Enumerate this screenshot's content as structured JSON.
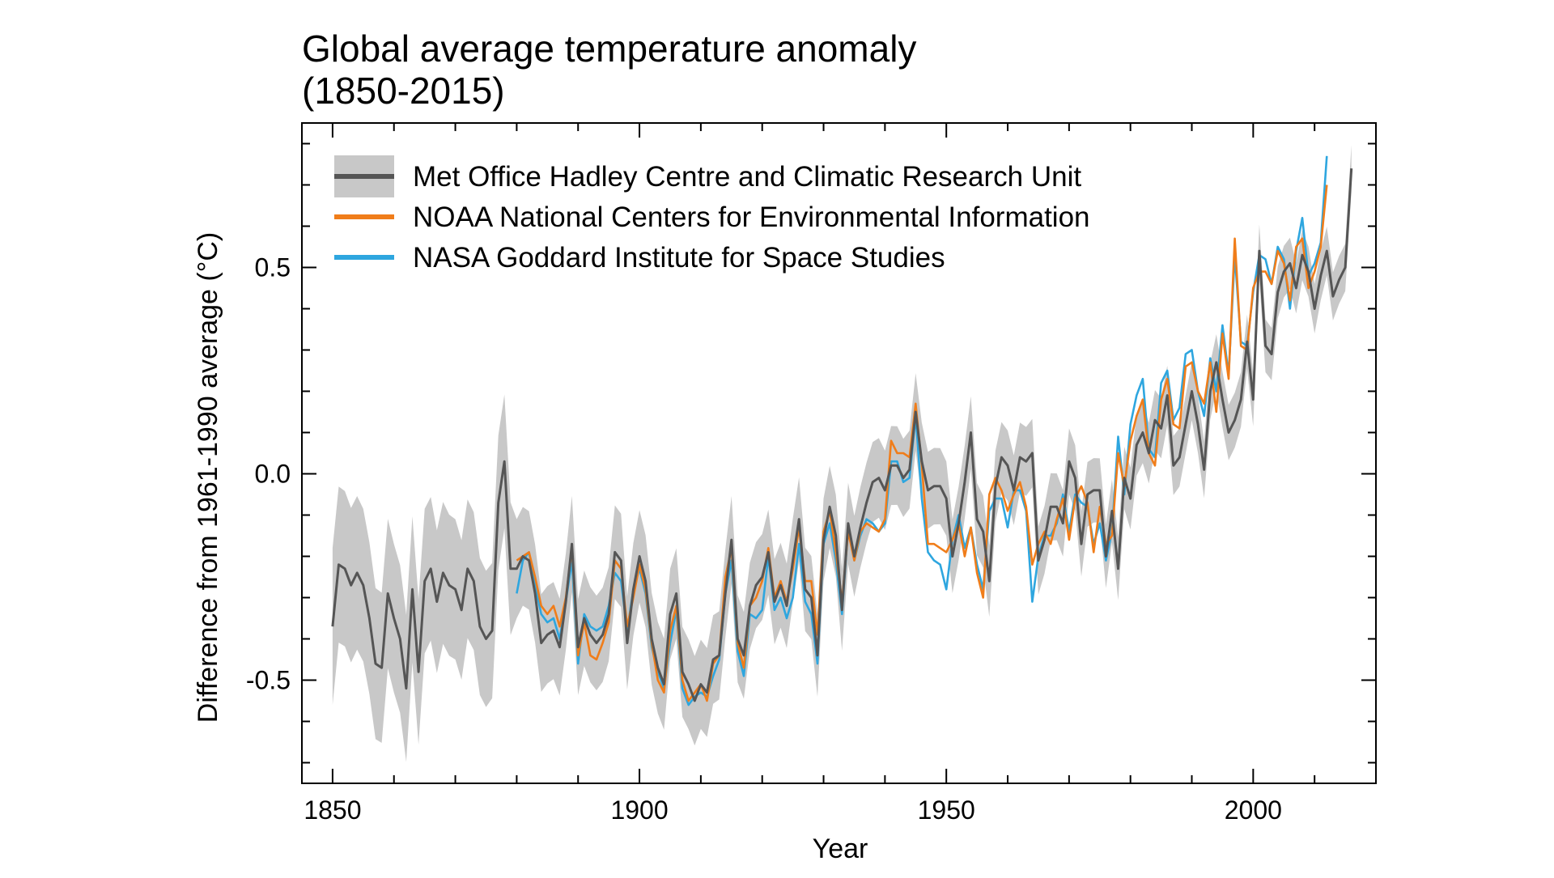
{
  "chart_data": {
    "type": "line",
    "title": "Global average temperature anomaly",
    "subtitle": "(1850-2015)",
    "xlabel": "Year",
    "ylabel": "Difference from 1961-1990 average (°C)",
    "xlim": [
      1845,
      2020
    ],
    "ylim": [
      -0.75,
      0.85
    ],
    "x_ticks": [
      1850,
      1900,
      1950,
      2000
    ],
    "y_ticks": [
      -0.5,
      0.0,
      0.5
    ],
    "y_tick_labels": [
      "-0.5",
      "0.0",
      "0.5"
    ],
    "grid": false,
    "legend_position": "top-left",
    "colors": {
      "hadcrut": "#555555",
      "uncertainty": "#c8c8c8",
      "noaa": "#f07d1a",
      "nasa": "#2ea6df"
    },
    "series": [
      {
        "name": "Met Office Hadley Centre and Climatic Research Unit",
        "color": "#555555",
        "band": true,
        "start_year": 1850,
        "values": [
          -0.37,
          -0.22,
          -0.23,
          -0.27,
          -0.24,
          -0.27,
          -0.35,
          -0.46,
          -0.47,
          -0.29,
          -0.35,
          -0.4,
          -0.52,
          -0.28,
          -0.48,
          -0.26,
          -0.23,
          -0.31,
          -0.24,
          -0.27,
          -0.28,
          -0.33,
          -0.23,
          -0.26,
          -0.37,
          -0.4,
          -0.38,
          -0.07,
          0.03,
          -0.23,
          -0.23,
          -0.2,
          -0.21,
          -0.29,
          -0.41,
          -0.39,
          -0.38,
          -0.42,
          -0.31,
          -0.17,
          -0.42,
          -0.35,
          -0.39,
          -0.41,
          -0.39,
          -0.34,
          -0.19,
          -0.21,
          -0.41,
          -0.28,
          -0.2,
          -0.26,
          -0.4,
          -0.47,
          -0.51,
          -0.34,
          -0.29,
          -0.48,
          -0.51,
          -0.55,
          -0.51,
          -0.53,
          -0.45,
          -0.44,
          -0.29,
          -0.16,
          -0.4,
          -0.44,
          -0.32,
          -0.27,
          -0.25,
          -0.19,
          -0.31,
          -0.27,
          -0.32,
          -0.21,
          -0.11,
          -0.28,
          -0.3,
          -0.44,
          -0.16,
          -0.08,
          -0.15,
          -0.33,
          -0.12,
          -0.2,
          -0.13,
          -0.07,
          -0.02,
          -0.01,
          -0.04,
          0.02,
          0.02,
          -0.01,
          0.01,
          0.15,
          0.03,
          -0.04,
          -0.03,
          -0.03,
          -0.06,
          -0.2,
          -0.12,
          -0.02,
          0.1,
          -0.11,
          -0.14,
          -0.26,
          -0.03,
          0.04,
          0.02,
          -0.04,
          0.04,
          0.03,
          0.05,
          -0.21,
          -0.16,
          -0.08,
          -0.08,
          -0.12,
          0.03,
          -0.01,
          -0.17,
          -0.05,
          -0.04,
          -0.04,
          -0.2,
          -0.09,
          -0.23,
          -0.01,
          -0.06,
          0.07,
          0.1,
          0.05,
          0.13,
          0.11,
          0.19,
          0.02,
          0.04,
          0.12,
          0.2,
          0.12,
          0.01,
          0.2,
          0.27,
          0.18,
          0.1,
          0.13,
          0.18,
          0.32,
          0.18,
          0.54,
          0.31,
          0.29,
          0.44,
          0.49,
          0.51,
          0.45,
          0.53,
          0.49,
          0.4,
          0.48,
          0.54,
          0.43,
          0.47,
          0.5,
          0.74
        ]
      },
      {
        "name": "NOAA National Centers for Environmental Information",
        "color": "#f07d1a",
        "start_year": 1880,
        "values": [
          -0.21,
          -0.2,
          -0.19,
          -0.25,
          -0.32,
          -0.34,
          -0.32,
          -0.37,
          -0.3,
          -0.18,
          -0.44,
          -0.36,
          -0.44,
          -0.45,
          -0.41,
          -0.36,
          -0.21,
          -0.23,
          -0.37,
          -0.3,
          -0.22,
          -0.28,
          -0.41,
          -0.5,
          -0.53,
          -0.38,
          -0.32,
          -0.5,
          -0.55,
          -0.53,
          -0.51,
          -0.55,
          -0.46,
          -0.44,
          -0.25,
          -0.18,
          -0.41,
          -0.47,
          -0.32,
          -0.3,
          -0.26,
          -0.18,
          -0.3,
          -0.26,
          -0.31,
          -0.23,
          -0.13,
          -0.26,
          -0.26,
          -0.39,
          -0.14,
          -0.09,
          -0.19,
          -0.31,
          -0.14,
          -0.21,
          -0.14,
          -0.12,
          -0.13,
          -0.14,
          -0.11,
          0.08,
          0.05,
          0.05,
          0.04,
          0.17,
          0.02,
          -0.17,
          -0.17,
          -0.18,
          -0.19,
          -0.16,
          -0.12,
          -0.2,
          -0.13,
          -0.24,
          -0.3,
          -0.05,
          -0.01,
          -0.04,
          -0.09,
          -0.05,
          -0.02,
          -0.08,
          -0.22,
          -0.17,
          -0.14,
          -0.17,
          -0.11,
          -0.06,
          -0.16,
          -0.06,
          -0.03,
          -0.07,
          -0.19,
          -0.08,
          -0.17,
          -0.15,
          0.05,
          -0.03,
          0.08,
          0.14,
          0.18,
          0.05,
          0.02,
          0.18,
          0.23,
          0.12,
          0.11,
          0.26,
          0.27,
          0.2,
          0.17,
          0.27,
          0.15,
          0.34,
          0.23,
          0.57,
          0.31,
          0.3,
          0.45,
          0.49,
          0.49,
          0.46,
          0.54,
          0.51,
          0.42,
          0.55,
          0.57,
          0.45,
          0.49,
          0.55,
          0.7
        ]
      },
      {
        "name": "NASA Goddard Institute for Space Studies",
        "color": "#2ea6df",
        "start_year": 1880,
        "values": [
          -0.29,
          -0.21,
          -0.19,
          -0.27,
          -0.34,
          -0.36,
          -0.35,
          -0.4,
          -0.31,
          -0.21,
          -0.46,
          -0.34,
          -0.37,
          -0.38,
          -0.37,
          -0.32,
          -0.24,
          -0.26,
          -0.38,
          -0.28,
          -0.23,
          -0.29,
          -0.42,
          -0.48,
          -0.52,
          -0.41,
          -0.33,
          -0.52,
          -0.56,
          -0.54,
          -0.53,
          -0.54,
          -0.49,
          -0.45,
          -0.29,
          -0.21,
          -0.43,
          -0.49,
          -0.34,
          -0.35,
          -0.33,
          -0.2,
          -0.33,
          -0.3,
          -0.35,
          -0.3,
          -0.17,
          -0.31,
          -0.34,
          -0.46,
          -0.17,
          -0.12,
          -0.21,
          -0.34,
          -0.13,
          -0.21,
          -0.15,
          -0.11,
          -0.12,
          -0.14,
          -0.12,
          0.03,
          0.03,
          -0.02,
          -0.01,
          0.14,
          -0.06,
          -0.19,
          -0.21,
          -0.22,
          -0.28,
          -0.16,
          -0.1,
          -0.18,
          -0.13,
          -0.22,
          -0.28,
          -0.09,
          -0.06,
          -0.06,
          -0.13,
          -0.04,
          -0.04,
          -0.09,
          -0.31,
          -0.2,
          -0.15,
          -0.15,
          -0.12,
          -0.05,
          -0.14,
          -0.05,
          -0.07,
          -0.08,
          -0.17,
          -0.12,
          -0.21,
          -0.14,
          0.09,
          -0.05,
          0.12,
          0.19,
          0.23,
          0.06,
          0.04,
          0.22,
          0.25,
          0.13,
          0.16,
          0.29,
          0.3,
          0.2,
          0.14,
          0.28,
          0.2,
          0.36,
          0.24,
          0.53,
          0.32,
          0.31,
          0.44,
          0.53,
          0.52,
          0.46,
          0.55,
          0.52,
          0.4,
          0.54,
          0.62,
          0.48,
          0.51,
          0.56,
          0.77
        ]
      }
    ]
  }
}
